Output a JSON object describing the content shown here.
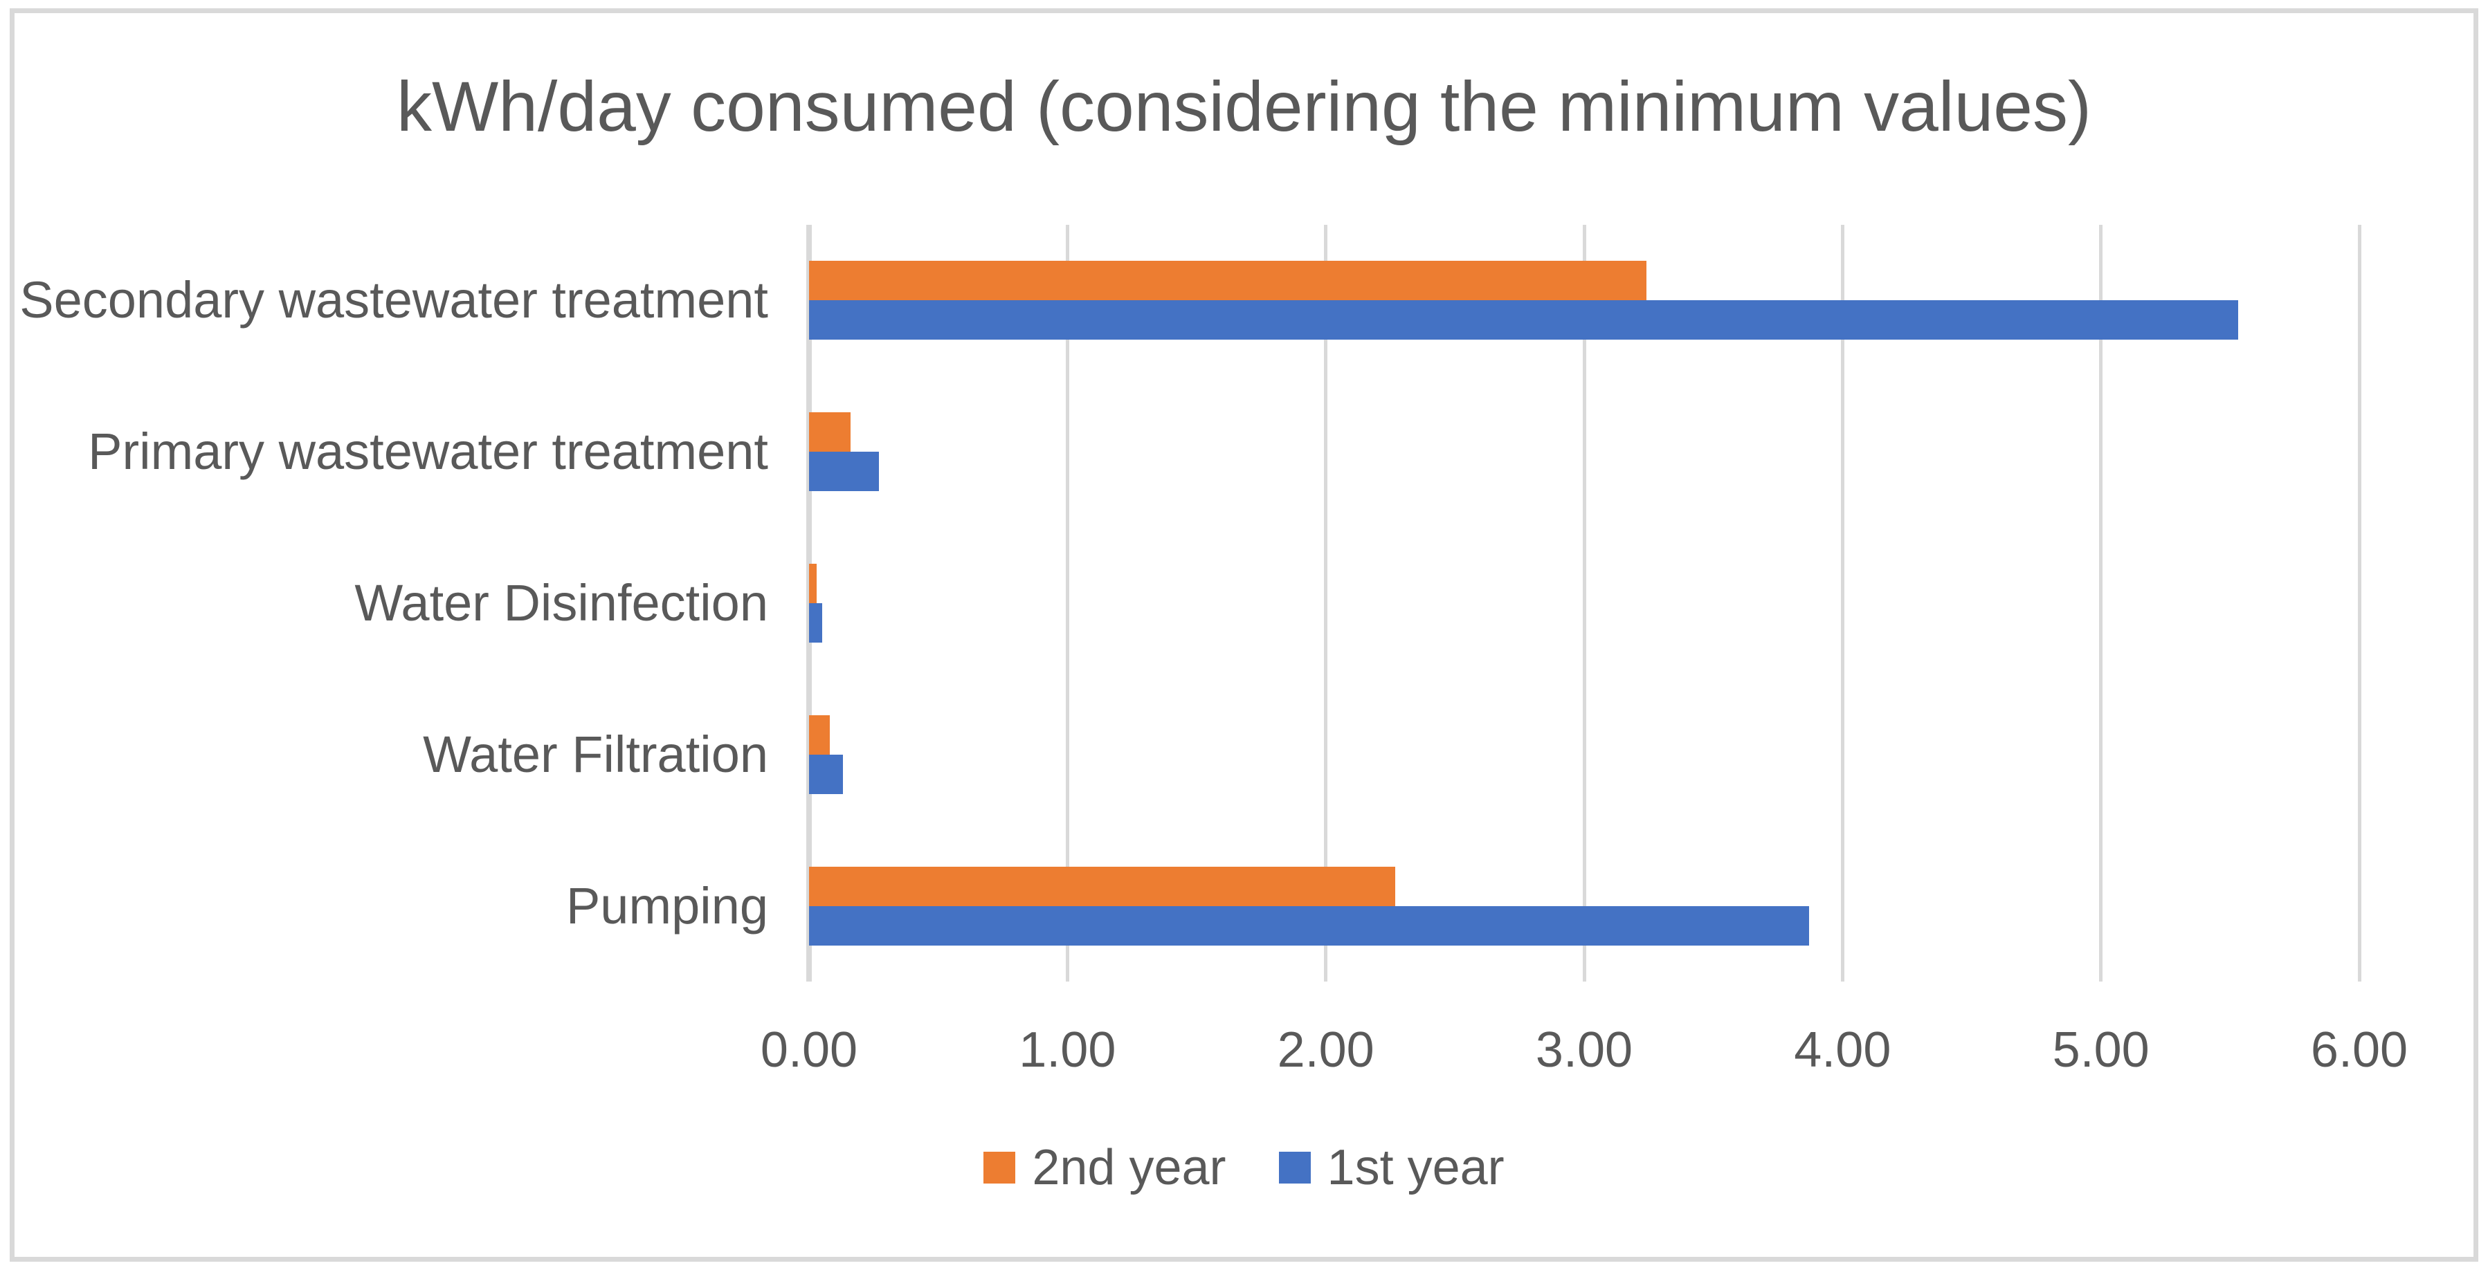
{
  "chart_data": {
    "type": "bar",
    "orientation": "horizontal",
    "title": "kWh/day consumed (considering the minimum values)",
    "categories": [
      "Secondary wastewater treatment",
      "Primary wastewater treatment",
      "Water Disinfection",
      "Water Filtration",
      "Pumping"
    ],
    "series": [
      {
        "name": "2nd year",
        "color": "#ED7D31",
        "values": [
          3.24,
          0.16,
          0.03,
          0.08,
          2.27
        ]
      },
      {
        "name": "1st year",
        "color": "#4472C4",
        "values": [
          5.53,
          0.27,
          0.05,
          0.13,
          3.87
        ]
      }
    ],
    "xlabel": "",
    "ylabel": "",
    "xlim": [
      0,
      6
    ],
    "x_ticks": [
      "0.00",
      "1.00",
      "2.00",
      "3.00",
      "4.00",
      "5.00",
      "6.00"
    ],
    "grid": true,
    "legend_position": "bottom",
    "colors": {
      "series_2nd_year": "#ED7D31",
      "series_1st_year": "#4472C4",
      "gridline": "#D9D9D9",
      "axis_line": "#D9D9D9",
      "text": "#595959",
      "frame_border": "#D9D9D9",
      "background": "#FFFFFF"
    }
  }
}
